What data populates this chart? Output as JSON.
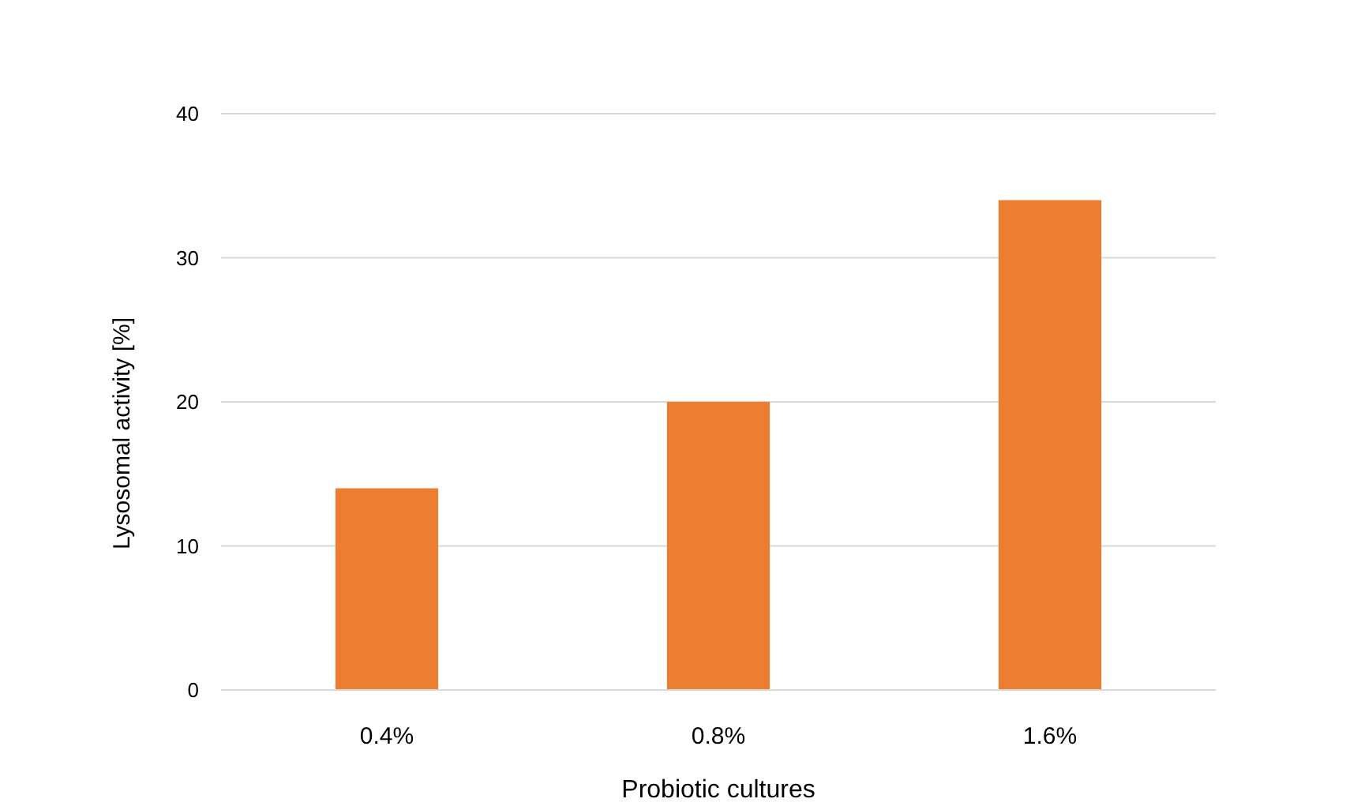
{
  "chart_data": {
    "type": "bar",
    "xlabel": "Probiotic cultures",
    "ylabel": "Lysosomal activity [%]",
    "categories": [
      "0.4%",
      "0.8%",
      "1.6%"
    ],
    "values": [
      14,
      20,
      34
    ],
    "color": "#ed7d31",
    "ylim": [
      0,
      40
    ],
    "yticks": [
      0,
      10,
      20,
      30,
      40
    ],
    "grid": "y"
  }
}
